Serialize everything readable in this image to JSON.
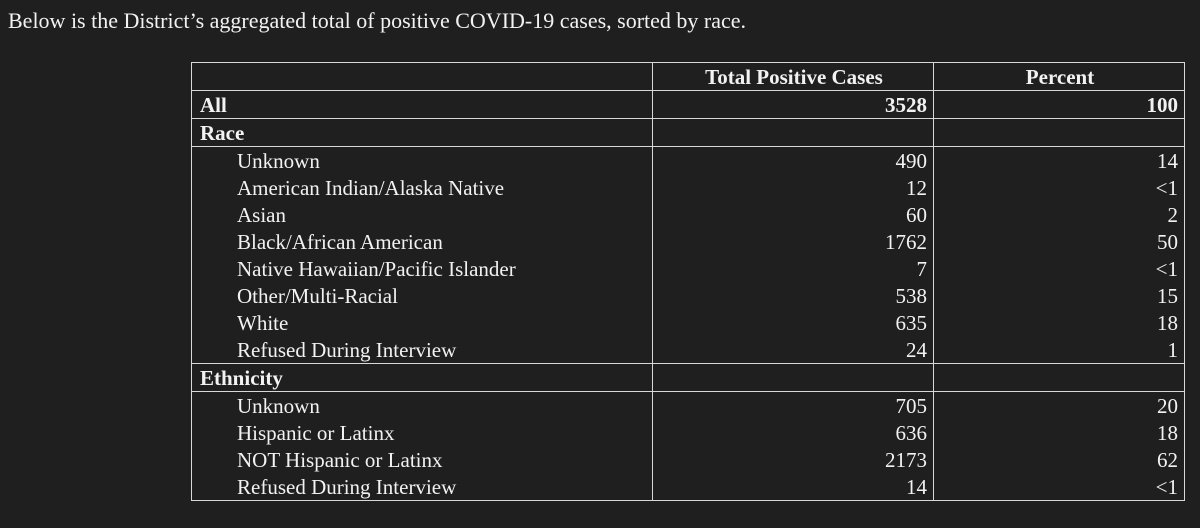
{
  "header": {
    "title": "Below is the District’s aggregated total of positive COVID-19 cases, sorted by race."
  },
  "table": {
    "columns": [
      "Total Positive Cases",
      "Percent"
    ],
    "total": {
      "label": "All",
      "cases": 3528,
      "percent": 100
    },
    "groups": [
      {
        "label": "Race",
        "rows": [
          {
            "label": "Unknown",
            "cases": 490,
            "percent": 14
          },
          {
            "label": "American Indian/Alaska Native",
            "cases": 12,
            "percent": "<1"
          },
          {
            "label": "Asian",
            "cases": 60,
            "percent": 2
          },
          {
            "label": "Black/African American",
            "cases": 1762,
            "percent": 50
          },
          {
            "label": "Native Hawaiian/Pacific Islander",
            "cases": 7,
            "percent": "<1"
          },
          {
            "label": "Other/Multi-Racial",
            "cases": 538,
            "percent": 15
          },
          {
            "label": "White",
            "cases": 635,
            "percent": 18
          },
          {
            "label": "Refused During Interview",
            "cases": 24,
            "percent": 1
          }
        ]
      },
      {
        "label": "Ethnicity",
        "rows": [
          {
            "label": "Unknown",
            "cases": 705,
            "percent": 20
          },
          {
            "label": "Hispanic or Latinx",
            "cases": 636,
            "percent": 18
          },
          {
            "label": "NOT Hispanic or Latinx",
            "cases": 2173,
            "percent": 62
          },
          {
            "label": "Refused During Interview",
            "cases": 14,
            "percent": "<1"
          }
        ]
      }
    ]
  }
}
